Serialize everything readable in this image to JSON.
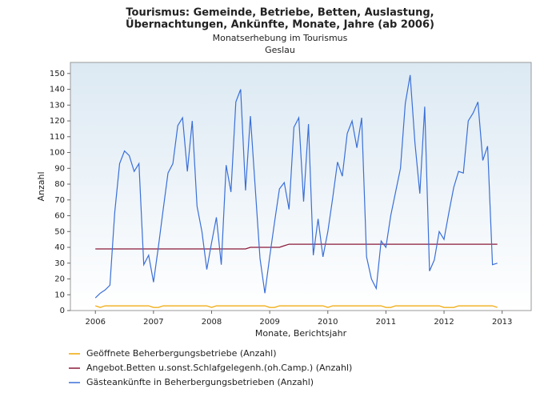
{
  "chart_data": {
    "type": "line",
    "title": "Tourismus: Gemeinde, Betriebe, Betten, Auslastung,",
    "title_line2": "Übernachtungen, Ankünfte, Monate, Jahre (ab 2006)",
    "subtitle": "Monatserhebung im Tourismus",
    "subtitle_line2": "Geslau",
    "x_label": "Monate, Berichtsjahr",
    "y_label": "Anzahl",
    "xlim": [
      2005.57,
      2013.5
    ],
    "xticks": [
      2006,
      2007,
      2008,
      2009,
      2010,
      2011,
      2012,
      2013
    ],
    "ylim": [
      0,
      157
    ],
    "yticks": [
      0,
      10,
      20,
      30,
      40,
      50,
      60,
      70,
      80,
      90,
      100,
      110,
      120,
      130,
      140,
      150
    ],
    "x": [
      2006,
      2006.083,
      2006.167,
      2006.25,
      2006.333,
      2006.417,
      2006.5,
      2006.583,
      2006.667,
      2006.75,
      2006.833,
      2006.917,
      2007,
      2007.083,
      2007.167,
      2007.25,
      2007.333,
      2007.417,
      2007.5,
      2007.583,
      2007.667,
      2007.75,
      2007.833,
      2007.917,
      2008,
      2008.083,
      2008.167,
      2008.25,
      2008.333,
      2008.417,
      2008.5,
      2008.583,
      2008.667,
      2008.75,
      2008.833,
      2008.917,
      2009,
      2009.083,
      2009.167,
      2009.25,
      2009.333,
      2009.417,
      2009.5,
      2009.583,
      2009.667,
      2009.75,
      2009.833,
      2009.917,
      2010,
      2010.083,
      2010.167,
      2010.25,
      2010.333,
      2010.417,
      2010.5,
      2010.583,
      2010.667,
      2010.75,
      2010.833,
      2010.917,
      2011,
      2011.083,
      2011.167,
      2011.25,
      2011.333,
      2011.417,
      2011.5,
      2011.583,
      2011.667,
      2011.75,
      2011.833,
      2011.917,
      2012,
      2012.083,
      2012.167,
      2012.25,
      2012.333,
      2012.417,
      2012.5,
      2012.583,
      2012.667,
      2012.75,
      2012.833,
      2012.917
    ],
    "series": [
      {
        "name": "Geöffnete Beherbergungsbetriebe (Anzahl)",
        "color": "#f0a500",
        "values": [
          3,
          2,
          3,
          3,
          3,
          3,
          3,
          3,
          3,
          3,
          3,
          3,
          2,
          2,
          3,
          3,
          3,
          3,
          3,
          3,
          3,
          3,
          3,
          3,
          2,
          3,
          3,
          3,
          3,
          3,
          3,
          3,
          3,
          3,
          3,
          3,
          2,
          2,
          3,
          3,
          3,
          3,
          3,
          3,
          3,
          3,
          3,
          3,
          2,
          3,
          3,
          3,
          3,
          3,
          3,
          3,
          3,
          3,
          3,
          3,
          2,
          2,
          3,
          3,
          3,
          3,
          3,
          3,
          3,
          3,
          3,
          3,
          2,
          2,
          2,
          3,
          3,
          3,
          3,
          3,
          3,
          3,
          3,
          2
        ]
      },
      {
        "name": "Angebot.Betten u.sonst.Schlafgelegenh.(oh.Camp.) (Anzahl)",
        "color": "#8b1a3a",
        "values": [
          39,
          39,
          39,
          39,
          39,
          39,
          39,
          39,
          39,
          39,
          39,
          39,
          39,
          39,
          39,
          39,
          39,
          39,
          39,
          39,
          39,
          39,
          39,
          39,
          39,
          39,
          39,
          39,
          39,
          39,
          39,
          39,
          40,
          40,
          40,
          40,
          40,
          40,
          40,
          41,
          42,
          42,
          42,
          42,
          42,
          42,
          42,
          42,
          42,
          42,
          42,
          42,
          42,
          42,
          42,
          42,
          42,
          42,
          42,
          42,
          42,
          42,
          42,
          42,
          42,
          42,
          42,
          42,
          42,
          42,
          42,
          42,
          42,
          42,
          42,
          42,
          42,
          42,
          42,
          42,
          42,
          42,
          42,
          42
        ]
      },
      {
        "name": "Gästeankünfte in Beherbergungsbetrieben (Anzahl)",
        "color": "#3a6fd8",
        "values": [
          8,
          11,
          13,
          16,
          62,
          93,
          101,
          98,
          88,
          93,
          29,
          35,
          18,
          40,
          64,
          87,
          93,
          117,
          122,
          88,
          120,
          66,
          50,
          26,
          43,
          59,
          29,
          92,
          75,
          132,
          140,
          76,
          123,
          78,
          33,
          11,
          34,
          56,
          77,
          81,
          64,
          116,
          122,
          69,
          118,
          35,
          58,
          34,
          50,
          71,
          94,
          85,
          112,
          120,
          103,
          122,
          34,
          20,
          14,
          44,
          40,
          60,
          75,
          90,
          131,
          149,
          106,
          74,
          129,
          25,
          32,
          50,
          45,
          62,
          78,
          88,
          87,
          120,
          125,
          132,
          95,
          104,
          29,
          30
        ]
      }
    ]
  }
}
